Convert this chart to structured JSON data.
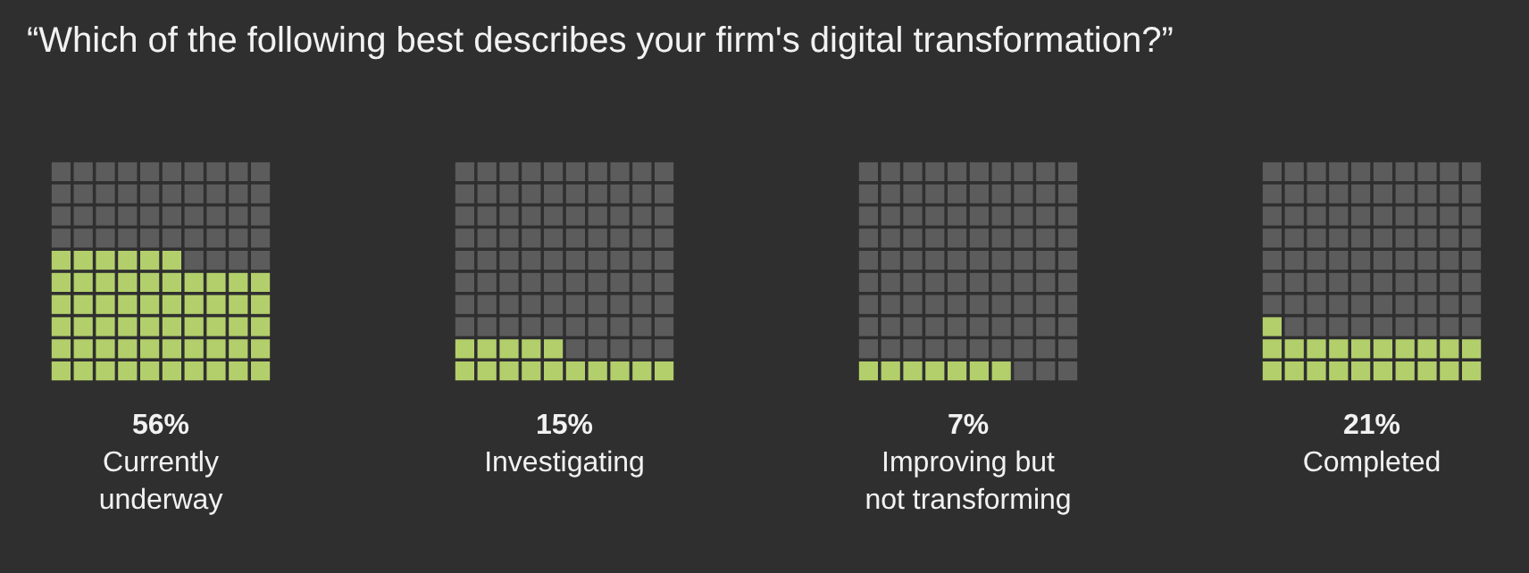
{
  "chart_data": {
    "type": "other",
    "title": "“Which of the following best describes your firm's digital transformation?”",
    "categories": [
      "Currently\nunderway",
      "Investigating",
      "Improving but\nnot transforming",
      "Completed"
    ],
    "values": [
      56,
      15,
      7,
      21
    ],
    "value_labels": [
      "56%",
      "15%",
      "7%",
      "21%"
    ],
    "colors": [
      "#b3cf6b",
      "#b3cf6b",
      "#b3cf6b",
      "#b3cf6b"
    ]
  }
}
